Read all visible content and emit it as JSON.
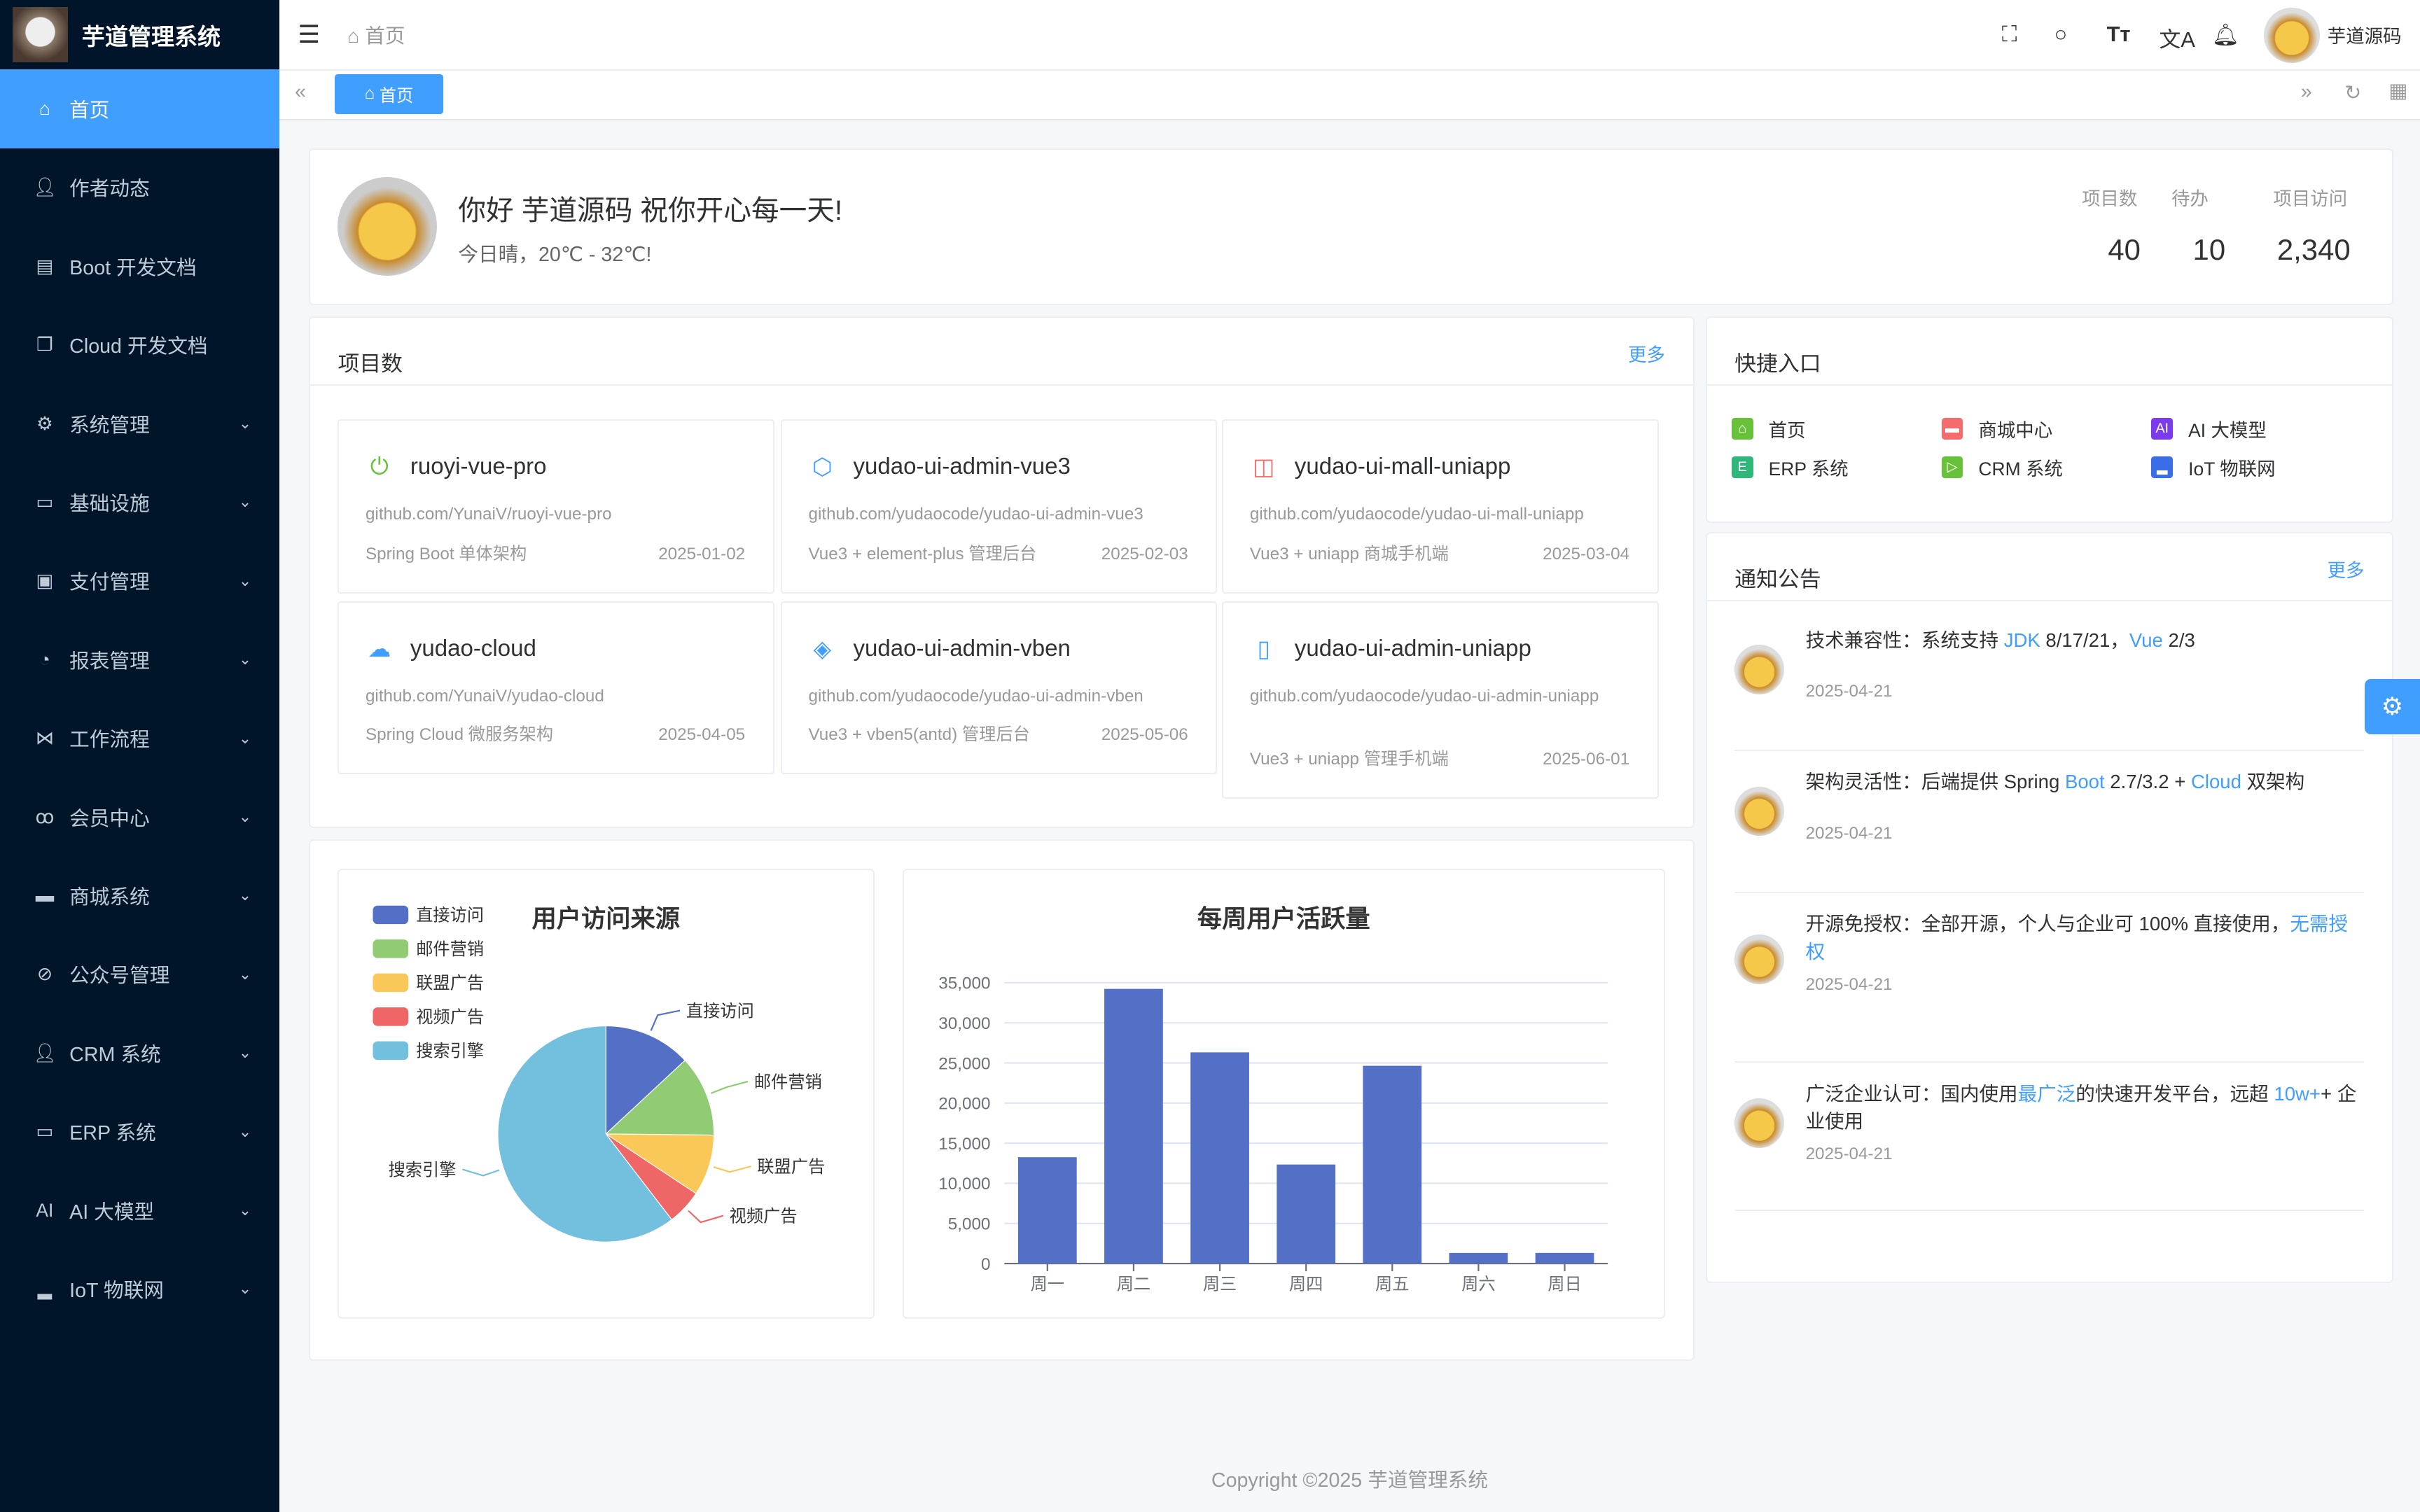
{
  "app": {
    "title": "芋道管理系统"
  },
  "sidebar": {
    "items": [
      {
        "label": "首页",
        "icon": "home-icon",
        "active": true
      },
      {
        "label": "作者动态",
        "icon": "user-icon"
      },
      {
        "label": "Boot 开发文档",
        "icon": "document-icon"
      },
      {
        "label": "Cloud 开发文档",
        "icon": "documents-icon"
      },
      {
        "label": "系统管理",
        "icon": "gear-icon",
        "expandable": true
      },
      {
        "label": "基础设施",
        "icon": "monitor-icon",
        "expandable": true
      },
      {
        "label": "支付管理",
        "icon": "payment-icon",
        "expandable": true
      },
      {
        "label": "报表管理",
        "icon": "pie-chart-icon",
        "expandable": true
      },
      {
        "label": "工作流程",
        "icon": "workflow-icon",
        "expandable": true
      },
      {
        "label": "会员中心",
        "icon": "bike-icon",
        "expandable": true
      },
      {
        "label": "商城系统",
        "icon": "shop-icon",
        "expandable": true
      },
      {
        "label": "公众号管理",
        "icon": "compass-icon",
        "expandable": true
      },
      {
        "label": "CRM 系统",
        "icon": "user-icon",
        "expandable": true
      },
      {
        "label": "ERP 系统",
        "icon": "store-icon",
        "expandable": true
      },
      {
        "label": "AI 大模型",
        "icon": "ai-icon",
        "expandable": true
      },
      {
        "label": "IoT 物联网",
        "icon": "car-icon",
        "expandable": true
      }
    ]
  },
  "header": {
    "breadcrumb": "首页",
    "username": "芋道源码"
  },
  "tags": {
    "active": "首页"
  },
  "welcome": {
    "greeting": "你好 芋道源码 祝你开心每一天!",
    "weather": "今日晴，20℃ - 32℃!",
    "stats": [
      {
        "label": "项目数",
        "value": "40"
      },
      {
        "label": "待办",
        "value": "10"
      },
      {
        "label": "项目访问",
        "value": "2,340"
      }
    ]
  },
  "projects": {
    "title": "项目数",
    "more": "更多",
    "items": [
      {
        "name": "ruoyi-vue-pro",
        "url": "github.com/YunaiV/ruoyi-vue-pro",
        "desc": "Spring Boot 单体架构",
        "date": "2025-01-02",
        "icon": "power-icon",
        "color": "#67c23a"
      },
      {
        "name": "yudao-ui-admin-vue3",
        "url": "github.com/yudaocode/yudao-ui-admin-vue3",
        "desc": "Vue3 + element-plus 管理后台",
        "date": "2025-02-03",
        "icon": "vite-icon",
        "color": "#409eff"
      },
      {
        "name": "yudao-ui-mall-uniapp",
        "url": "github.com/yudaocode/yudao-ui-mall-uniapp",
        "desc": "Vue3 + uniapp 商城手机端",
        "date": "2025-03-04",
        "icon": "shopping-bag-icon",
        "color": "#f56c6c"
      },
      {
        "name": "yudao-cloud",
        "url": "github.com/YunaiV/yudao-cloud",
        "desc": "Spring Cloud 微服务架构",
        "date": "2025-04-05",
        "icon": "cloud-icon",
        "color": "#409eff"
      },
      {
        "name": "yudao-ui-admin-vben",
        "url": "github.com/yudaocode/yudao-ui-admin-vben",
        "desc": "Vue3 + vben5(antd) 管理后台",
        "date": "2025-05-06",
        "icon": "diamond-icon",
        "color": "#409eff"
      },
      {
        "name": "yudao-ui-admin-uniapp",
        "url": "github.com/yudaocode/yudao-ui-admin-uniapp",
        "desc": "Vue3 + uniapp 管理手机端",
        "date": "2025-06-01",
        "icon": "phone-icon",
        "color": "#409eff"
      }
    ]
  },
  "quick": {
    "title": "快捷入口",
    "items": [
      {
        "label": "首页",
        "icon": "home-icon",
        "color": "#67c23a"
      },
      {
        "label": "商城中心",
        "icon": "shop-icon",
        "color": "#f56c6c"
      },
      {
        "label": "AI 大模型",
        "icon": "ai-icon",
        "color": "#7c3aed"
      },
      {
        "label": "ERP 系统",
        "icon": "erp-icon",
        "color": "#2fb77a"
      },
      {
        "label": "CRM 系统",
        "icon": "play-icon",
        "color": "#67c23a"
      },
      {
        "label": "IoT 物联网",
        "icon": "car-icon",
        "color": "#3a6ee8"
      }
    ]
  },
  "notices": {
    "title": "通知公告",
    "more": "更多",
    "items": [
      {
        "parts": [
          "技术兼容性：系统支持 ",
          "JDK",
          " 8/17/21，",
          "Vue",
          " 2/3"
        ],
        "date": "2025-04-21"
      },
      {
        "parts": [
          "架构灵活性：后端提供 Spring ",
          "Boot",
          " 2.7/3.2 + ",
          "Cloud",
          " 双架构"
        ],
        "date": "2025-04-21"
      },
      {
        "parts": [
          "开源免授权：全部开源，个人与企业可 100% 直接使用，",
          "无需授权",
          "",
          "",
          ""
        ],
        "date": "2025-04-21"
      },
      {
        "parts": [
          "广泛企业认可：国内使用",
          "最广泛",
          "的快速开发平台，远超 ",
          "10w+",
          "+ 企业使用"
        ],
        "date": "2025-04-21"
      }
    ]
  },
  "chart_data": [
    {
      "type": "pie",
      "title": "用户访问来源",
      "legend": "top-left",
      "categories": [
        "直接访问",
        "邮件营销",
        "联盟广告",
        "视频广告",
        "搜索引擎"
      ],
      "values": [
        335,
        310,
        234,
        135,
        1548
      ],
      "colors": [
        "#5470c6",
        "#91cc75",
        "#fac858",
        "#ee6666",
        "#73c0de"
      ]
    },
    {
      "type": "bar",
      "title": "每周用户活跃量",
      "categories": [
        "周一",
        "周二",
        "周三",
        "周四",
        "周五",
        "周六",
        "周日"
      ],
      "values": [
        13253,
        34235,
        26321,
        12340,
        24643,
        1322,
        1324
      ],
      "ylim": [
        0,
        35000
      ],
      "yticks": [
        "0",
        "5,000",
        "10,000",
        "15,000",
        "20,000",
        "25,000",
        "30,000",
        "35,000"
      ],
      "color": "#5470c6",
      "grid": true
    }
  ],
  "footer": {
    "copyright": "Copyright ©2025 芋道管理系统"
  }
}
